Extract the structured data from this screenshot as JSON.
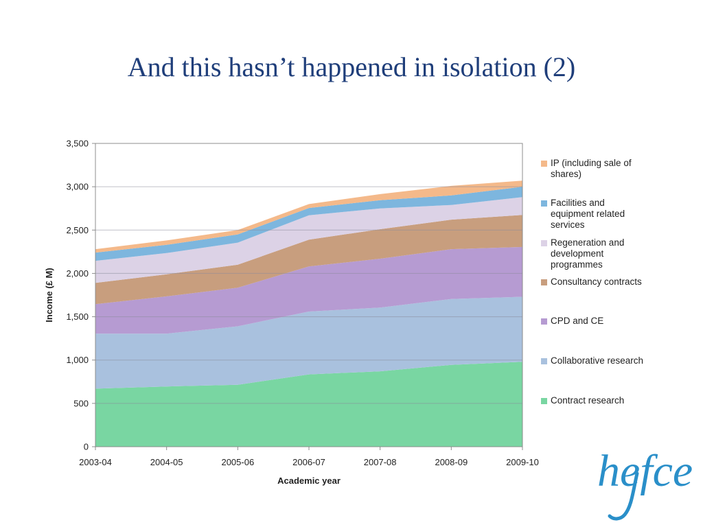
{
  "title": "And this hasn’t happened in isolation (2)",
  "chart_data": {
    "type": "area",
    "stacked": true,
    "xlabel": "Academic year",
    "ylabel": "Income (£ M)",
    "ylim": [
      0,
      3500
    ],
    "yticks": [
      0,
      500,
      1000,
      1500,
      2000,
      2500,
      3000,
      3500
    ],
    "ytick_labels": [
      "0",
      "500",
      "1,000",
      "1,500",
      "2,000",
      "2,500",
      "3,000",
      "3,500"
    ],
    "categories": [
      "2003-04",
      "2004-05",
      "2005-06",
      "2006-07",
      "2007-08",
      "2008-09",
      "2009-10"
    ],
    "grid": true,
    "legend_position": "right",
    "series": [
      {
        "name": "Contract research",
        "color": "#79d6a2",
        "values": [
          670,
          695,
          715,
          835,
          870,
          945,
          980
        ]
      },
      {
        "name": "Collaborative research",
        "color": "#a9c1de",
        "values": [
          635,
          610,
          675,
          725,
          735,
          760,
          750
        ]
      },
      {
        "name": "CPD and CE",
        "color": "#b69bd2",
        "values": [
          340,
          430,
          445,
          520,
          565,
          575,
          575
        ]
      },
      {
        "name": "Consultancy contracts",
        "color": "#c89e7e",
        "values": [
          245,
          255,
          265,
          310,
          340,
          340,
          370
        ]
      },
      {
        "name": "Regeneration and development programmes",
        "color": "#dcd2e6",
        "values": [
          255,
          245,
          255,
          280,
          240,
          170,
          205
        ]
      },
      {
        "name": "Facilities and equipment related services",
        "color": "#7db6de",
        "values": [
          95,
          95,
          95,
          85,
          95,
          110,
          120
        ]
      },
      {
        "name": "IP (including sale of shares)",
        "color": "#f4b98a",
        "values": [
          40,
          50,
          50,
          45,
          70,
          110,
          70
        ]
      }
    ]
  },
  "legend_lines": [
    [
      "IP (including sale of",
      "shares)"
    ],
    [
      "Facilities and",
      "equipment related",
      "services"
    ],
    [
      "Regeneration and",
      "development",
      "programmes"
    ],
    [
      "Consultancy contracts"
    ],
    [
      "CPD and CE"
    ],
    [
      "Collaborative research"
    ],
    [
      "Contract research"
    ]
  ],
  "logo": {
    "text": "hefce",
    "color": "#2a8fc9"
  }
}
